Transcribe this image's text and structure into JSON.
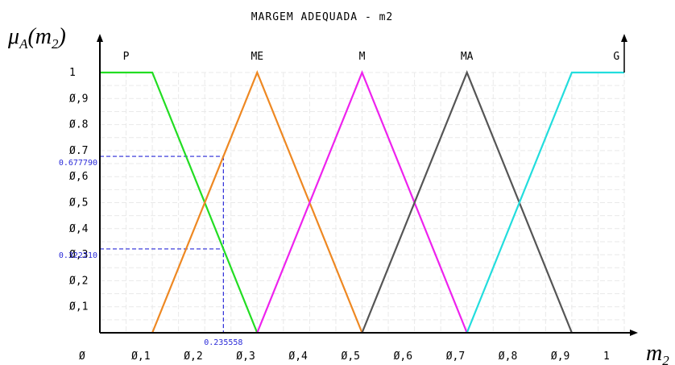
{
  "chart_data": {
    "type": "line",
    "title": "MARGEM ADEQUADA - m2",
    "ylabel": "μA(m2)",
    "xlabel": "m2",
    "xlim": [
      0,
      1
    ],
    "ylim": [
      0,
      1
    ],
    "grid": true,
    "x_ticks": [
      "Ø",
      "Ø,1",
      "Ø,2",
      "Ø,3",
      "Ø,4",
      "Ø,5",
      "Ø,6",
      "Ø,7",
      "Ø,8",
      "Ø,9",
      "1"
    ],
    "y_ticks": [
      "Ø,1",
      "Ø,2",
      "Ø,3",
      "Ø,4",
      "Ø,5",
      "Ø,6",
      "Ø.7",
      "Ø.8",
      "Ø,9",
      "1"
    ],
    "series": [
      {
        "name": "P",
        "color": "#22dd22",
        "points": [
          [
            0,
            1
          ],
          [
            0.1,
            1
          ],
          [
            0.3,
            0
          ]
        ]
      },
      {
        "name": "ME",
        "color": "#ee8822",
        "points": [
          [
            0.1,
            0
          ],
          [
            0.3,
            1
          ],
          [
            0.5,
            0
          ]
        ]
      },
      {
        "name": "M",
        "color": "#ee22ee",
        "points": [
          [
            0.3,
            0
          ],
          [
            0.5,
            1
          ],
          [
            0.7,
            0
          ]
        ]
      },
      {
        "name": "MA",
        "color": "#555555",
        "points": [
          [
            0.5,
            0
          ],
          [
            0.7,
            1
          ],
          [
            0.9,
            0
          ]
        ]
      },
      {
        "name": "G",
        "color": "#22dddd",
        "points": [
          [
            0.7,
            0
          ],
          [
            0.9,
            1
          ],
          [
            1,
            1
          ]
        ]
      }
    ],
    "annotations": {
      "x_marker": {
        "value": 0.235558,
        "label": "0.235558"
      },
      "y_markers": [
        {
          "value": 0.67779,
          "label": "0.677790"
        },
        {
          "value": 0.32221,
          "label": "0.322210"
        }
      ],
      "marker_color": "#2a2ad8"
    }
  }
}
